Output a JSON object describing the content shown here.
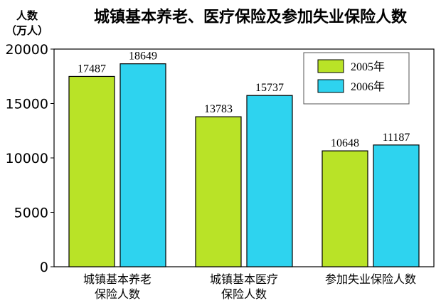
{
  "chart_data": {
    "type": "bar",
    "title": "城镇基本养老、医疗保险及参加失业保险人数",
    "ylabel": [
      "人数",
      "（万人）"
    ],
    "ylim": [
      0,
      20000
    ],
    "yticks": [
      "0",
      "5000",
      "10000",
      "15000",
      "20000"
    ],
    "categories": [
      [
        "城镇基本养老",
        "保险人数"
      ],
      [
        "城镇基本医疗",
        "保险人数"
      ],
      [
        "参加失业保险人数"
      ]
    ],
    "series": [
      {
        "name": "2005年",
        "color": "#b9e327",
        "values": [
          17487,
          13783,
          10648
        ]
      },
      {
        "name": "2006年",
        "color": "#2ed3ef",
        "values": [
          18649,
          15737,
          11187
        ]
      }
    ],
    "legend": "top-right",
    "grid": false
  }
}
